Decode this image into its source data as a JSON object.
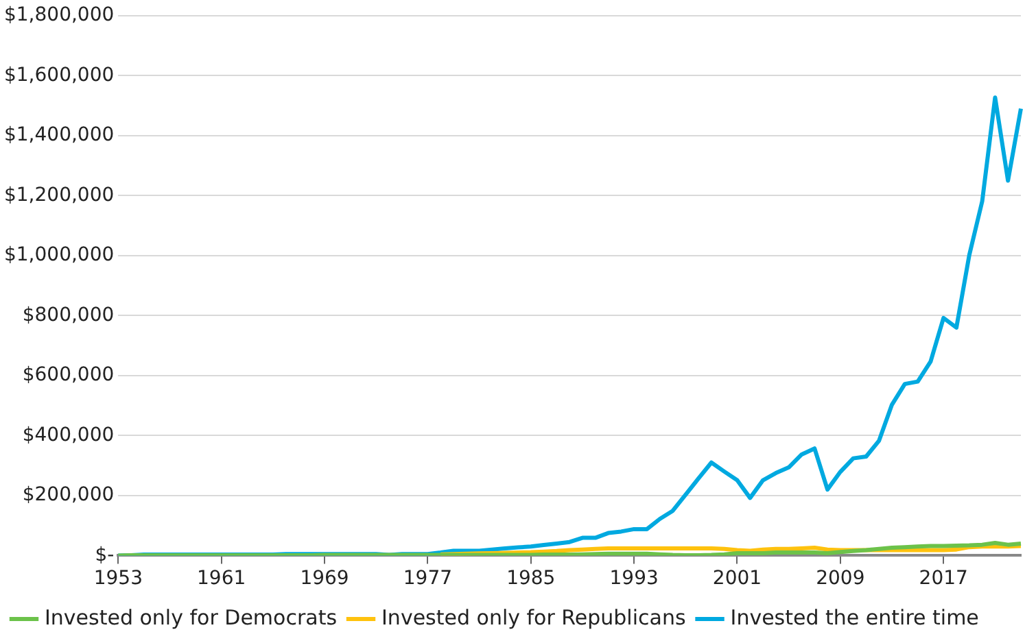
{
  "chart_data": {
    "type": "line",
    "categories": [
      "1953",
      null,
      null,
      null,
      null,
      null,
      null,
      null,
      "1961",
      null,
      null,
      null,
      null,
      null,
      null,
      null,
      "1969",
      null,
      null,
      null,
      null,
      null,
      null,
      null,
      "1977",
      null,
      null,
      null,
      null,
      null,
      null,
      null,
      "1985",
      null,
      null,
      null,
      null,
      null,
      null,
      null,
      "1993",
      null,
      null,
      null,
      null,
      null,
      null,
      null,
      "2001",
      null,
      null,
      null,
      null,
      null,
      null,
      null,
      "2009",
      null,
      null,
      null,
      null,
      null,
      null,
      null,
      "2017",
      null,
      null,
      null,
      null,
      null,
      null
    ],
    "series": [
      {
        "name": "Invested only for Democrats",
        "color": "#6cc24a",
        "values": [
          0,
          1000,
          1000,
          1000,
          1000,
          1000,
          1000,
          1000,
          1000,
          1000,
          1000,
          1000,
          1000,
          1000,
          1000,
          1000,
          2000,
          2000,
          2000,
          2000,
          2000,
          2000,
          2000,
          2000,
          2000,
          2000,
          2000,
          2000,
          2000,
          2000,
          2000,
          2000,
          2000,
          3000,
          3000,
          3000,
          4000,
          5000,
          6000,
          6000,
          6000,
          6000,
          4000,
          2000,
          1000,
          1000,
          2000,
          4000,
          8000,
          8000,
          8000,
          10000,
          10000,
          10000,
          10000,
          8000,
          12000,
          15000,
          18000,
          22000,
          26000,
          28000,
          30000,
          32000,
          32000,
          33000,
          34000,
          36000,
          42000,
          36000,
          40000
        ]
      },
      {
        "name": "Invested only for Republicans",
        "color": "#ffc20e",
        "values": [
          null,
          null,
          null,
          null,
          null,
          null,
          null,
          null,
          null,
          null,
          null,
          null,
          null,
          null,
          null,
          null,
          null,
          null,
          null,
          null,
          null,
          null,
          null,
          null,
          null,
          4000,
          5000,
          6000,
          7000,
          8000,
          9000,
          10000,
          11000,
          13000,
          15000,
          18000,
          20000,
          22000,
          24000,
          24000,
          24000,
          24000,
          24000,
          24000,
          24000,
          24000,
          24000,
          22000,
          18000,
          16000,
          20000,
          22000,
          22000,
          24000,
          26000,
          20000,
          18000,
          18000,
          18000,
          18000,
          18000,
          18000,
          18000,
          18000,
          18000,
          20000,
          28000,
          30000,
          30000,
          30000,
          32000
        ]
      },
      {
        "name": "Invested the entire time",
        "color": "#00a9e0",
        "values": [
          0,
          1000,
          3000,
          3000,
          3000,
          3000,
          3000,
          3000,
          3000,
          3000,
          3000,
          3000,
          3000,
          5000,
          5000,
          5000,
          5000,
          5000,
          5000,
          5000,
          5000,
          2000,
          5000,
          5000,
          5000,
          10000,
          16000,
          16000,
          16000,
          20000,
          24000,
          27000,
          30000,
          35000,
          40000,
          45000,
          59000,
          59000,
          75000,
          80000,
          88000,
          88000,
          122000,
          149000,
          203000,
          257000,
          310000,
          280000,
          251000,
          192000,
          251000,
          275000,
          294000,
          337000,
          357000,
          220000,
          279000,
          324000,
          330000,
          383000,
          503000,
          572000,
          580000,
          647000,
          792000,
          760000,
          1002000,
          1181000,
          1527000,
          1250000,
          1490000
        ]
      }
    ],
    "ylim": [
      0,
      1800000
    ],
    "yticks": [
      {
        "value": 0,
        "label": "$-"
      },
      {
        "value": 200000,
        "label": "$200,000"
      },
      {
        "value": 400000,
        "label": "$400,000"
      },
      {
        "value": 600000,
        "label": "$600,000"
      },
      {
        "value": 800000,
        "label": "$800,000"
      },
      {
        "value": 1000000,
        "label": "$1,000,000"
      },
      {
        "value": 1200000,
        "label": "$1,200,000"
      },
      {
        "value": 1400000,
        "label": "$1,400,000"
      },
      {
        "value": 1600000,
        "label": "$1,600,000"
      },
      {
        "value": 1800000,
        "label": "$1,800,000"
      }
    ],
    "grid": "y",
    "legend": "bottom",
    "marker": "none",
    "line_style": "solid"
  }
}
